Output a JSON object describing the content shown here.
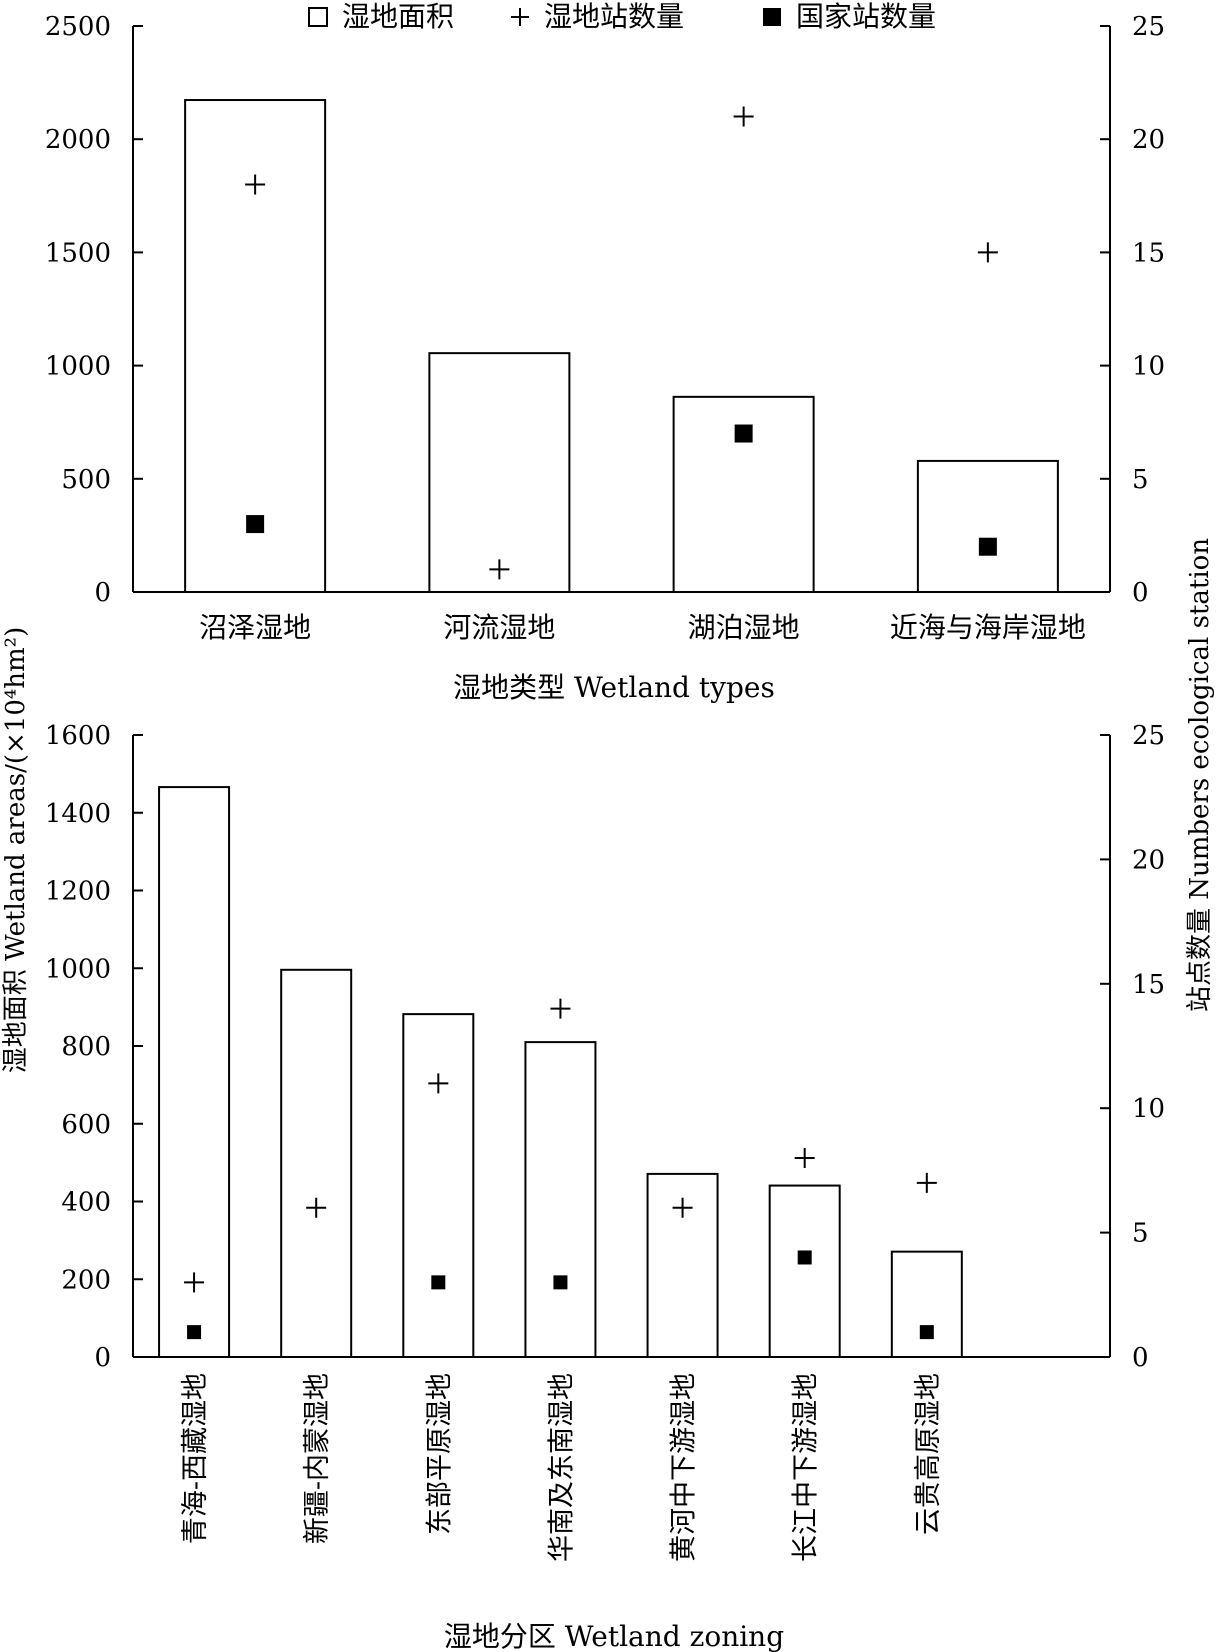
{
  "legend": {
    "position": "top-center",
    "items": [
      {
        "marker": "open-square",
        "label": "湿地面积"
      },
      {
        "marker": "plus",
        "label": "湿地站数量"
      },
      {
        "marker": "filled-square",
        "label": "国家站数量"
      }
    ]
  },
  "shared_left_ylabel": "湿地面积 Wetland areas/(×10⁴hm²)",
  "shared_right_ylabel": "站点数量 Numbers ecological station",
  "chart_data": [
    {
      "type": "bar",
      "categories": [
        "沼泽湿地",
        "河流湿地",
        "湖泊湿地",
        "近海与海岸湿地"
      ],
      "xlabel": "湿地类型 Wetland types",
      "ylim": [
        0,
        2500
      ],
      "yticks": [
        0,
        500,
        1000,
        1500,
        2000,
        2500
      ],
      "y2lim": [
        0,
        25
      ],
      "y2ticks": [
        0,
        5,
        10,
        15,
        20,
        25
      ],
      "series": [
        {
          "name": "湿地面积",
          "axis": "left",
          "kind": "bar",
          "values": [
            2173,
            1055,
            862,
            579
          ]
        },
        {
          "name": "湿地站数量",
          "axis": "right",
          "kind": "plus",
          "values": [
            18,
            1,
            21,
            15
          ]
        },
        {
          "name": "国家站数量",
          "axis": "right",
          "kind": "square",
          "values": [
            3,
            null,
            7,
            2
          ]
        }
      ]
    },
    {
      "type": "bar",
      "categories": [
        "青海-西藏湿地",
        "新疆-内蒙湿地",
        "东部平原湿地",
        "华南及东南湿地",
        "黄河中下游湿地",
        "长江中下游湿地",
        "云贵高原湿地"
      ],
      "xlabel": "湿地分区 Wetland zoning",
      "ylim": [
        0,
        1600
      ],
      "yticks": [
        0,
        200,
        400,
        600,
        800,
        1000,
        1200,
        1400,
        1600
      ],
      "y2lim": [
        0,
        25
      ],
      "y2ticks": [
        0,
        5,
        10,
        15,
        20,
        25
      ],
      "series": [
        {
          "name": "湿地面积",
          "axis": "left",
          "kind": "bar",
          "values": [
            1466,
            996,
            882,
            810,
            471,
            441,
            271
          ]
        },
        {
          "name": "湿地站数量",
          "axis": "right",
          "kind": "plus",
          "values": [
            3,
            6,
            11,
            14,
            6,
            8,
            7
          ]
        },
        {
          "name": "国家站数量",
          "axis": "right",
          "kind": "square",
          "values": [
            1,
            null,
            3,
            3,
            null,
            4,
            1
          ]
        }
      ]
    }
  ]
}
